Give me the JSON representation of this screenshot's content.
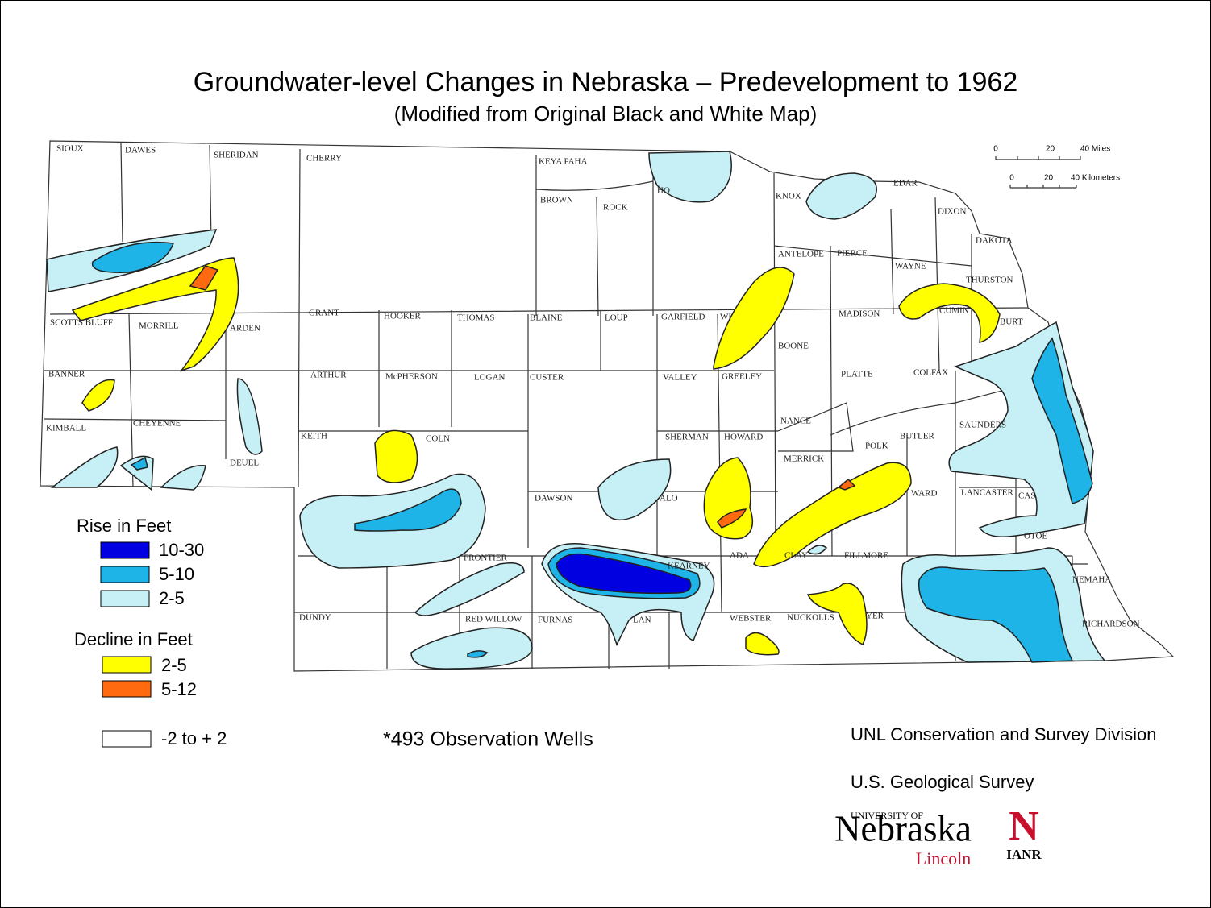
{
  "title": "Groundwater-level Changes in Nebraska – Predevelopment to 1962",
  "subtitle": "(Modified from Original Black and White Map)",
  "counties": [
    "SIOUX",
    "DAWES",
    "SHERIDAN",
    "CHERRY",
    "KEYA PAHA",
    "BROWN",
    "ROCK",
    "HO",
    "KNOX",
    "EDAR",
    "DIXON",
    "DAKOTA",
    "THURSTON",
    "WAYNE",
    "ANTELOPE",
    "PIERCE",
    "MADISON",
    "CUMIN",
    "BURT",
    "GRANT",
    "HOOKER",
    "THOMAS",
    "BLAINE",
    "LOUP",
    "GARFIELD",
    "WI",
    "SCOTTS BLUFF",
    "MORRILL",
    "ARDEN",
    "BOONE",
    "BANNER",
    "ARTHUR",
    "McPHERSON",
    "LOGAN",
    "CUSTER",
    "VALLEY",
    "GREELEY",
    "PLATTE",
    "COLFAX",
    "KIMBALL",
    "CHEYENNE",
    "DEUEL",
    "KEITH",
    "COLN",
    "SHERMAN",
    "HOWARD",
    "NANCE",
    "MERRICK",
    "POLK",
    "BUTLER",
    "SAUNDERS",
    "DAWSON",
    "ALO",
    "WARD",
    "LANCASTER",
    "CAS",
    "OTOE",
    "FRONTIER",
    "KEARNEY",
    "ADA",
    "CLAY",
    "FILLMORE",
    "NEMAHA",
    "DUNDY",
    "RED WILLOW",
    "FURNAS",
    "LAN",
    "WEBSTER",
    "NUCKOLLS",
    "YER",
    "RICHARDSON"
  ],
  "scale": {
    "miles": [
      "0",
      "20",
      "40 Miles"
    ],
    "kilometers": [
      "0",
      "20",
      "40 Kilometers"
    ]
  },
  "legend": {
    "rise_title": "Rise in Feet",
    "rise": [
      {
        "label": "10-30",
        "color": "#0000e0"
      },
      {
        "label": "5-10",
        "color": "#1eb4e8"
      },
      {
        "label": "2-5",
        "color": "#c6f0f5"
      }
    ],
    "decline_title": "Decline in Feet",
    "decline": [
      {
        "label": "2-5",
        "color": "#ffff00"
      },
      {
        "label": "5-12",
        "color": "#ff6a10"
      }
    ],
    "neutral": {
      "label": "-2 to + 2",
      "color": "#ffffff"
    }
  },
  "note": "*493 Observation Wells",
  "credits": [
    "UNL Conservation and Survey Division",
    "U.S. Geological Survey"
  ],
  "logos": {
    "university": "UNIVERSITY OF",
    "nebraska": "Nebraska",
    "lincoln": "Lincoln",
    "n": "N",
    "ianr": "IANR"
  }
}
